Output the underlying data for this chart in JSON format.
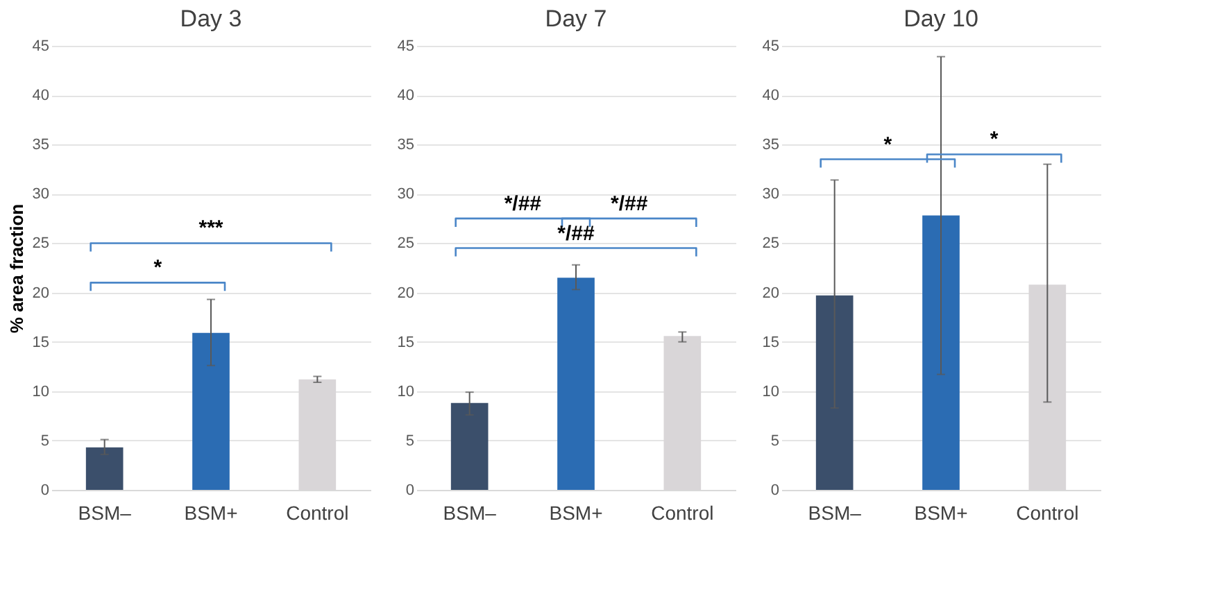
{
  "chart_data": [
    {
      "type": "bar",
      "title": "Day 3",
      "ylabel": "% area fraction",
      "categories": [
        "BSM–",
        "BSM+",
        "Control"
      ],
      "values": [
        4.3,
        15.9,
        11.2
      ],
      "colors": [
        "#3b4f6b",
        "#2b6cb3",
        "#d9d6d8"
      ],
      "errors": [
        [
          3.6,
          5.1
        ],
        [
          12.6,
          19.3
        ],
        [
          10.9,
          11.5
        ]
      ],
      "ylim": [
        0,
        45
      ],
      "yticks": [
        0,
        5,
        10,
        15,
        20,
        25,
        30,
        35,
        40,
        45
      ],
      "grid": "y",
      "annotations": [
        "*",
        "***"
      ]
    },
    {
      "type": "bar",
      "title": "Day 7",
      "categories": [
        "BSM–",
        "BSM+",
        "Control"
      ],
      "values": [
        8.8,
        21.5,
        15.6
      ],
      "colors": [
        "#3b4f6b",
        "#2b6cb3",
        "#d9d6d8"
      ],
      "errors": [
        [
          7.6,
          9.9
        ],
        [
          20.3,
          22.8
        ],
        [
          15.0,
          16.0
        ]
      ],
      "ylim": [
        0,
        45
      ],
      "yticks": [
        0,
        5,
        10,
        15,
        20,
        25,
        30,
        35,
        40,
        45
      ],
      "grid": "y",
      "annotations": [
        "*/##",
        "*/##",
        "*/##"
      ]
    },
    {
      "type": "bar",
      "title": "Day 10",
      "categories": [
        "BSM–",
        "BSM+",
        "Control"
      ],
      "values": [
        19.7,
        27.8,
        20.8
      ],
      "colors": [
        "#3b4f6b",
        "#2b6cb3",
        "#d9d6d8"
      ],
      "errors": [
        [
          8.3,
          31.4
        ],
        [
          11.7,
          43.9
        ],
        [
          8.9,
          33.0
        ]
      ],
      "ylim": [
        0,
        45
      ],
      "yticks": [
        0,
        5,
        10,
        15,
        20,
        25,
        30,
        35,
        40,
        45
      ],
      "grid": "y",
      "annotations": [
        "*",
        "*"
      ]
    }
  ]
}
